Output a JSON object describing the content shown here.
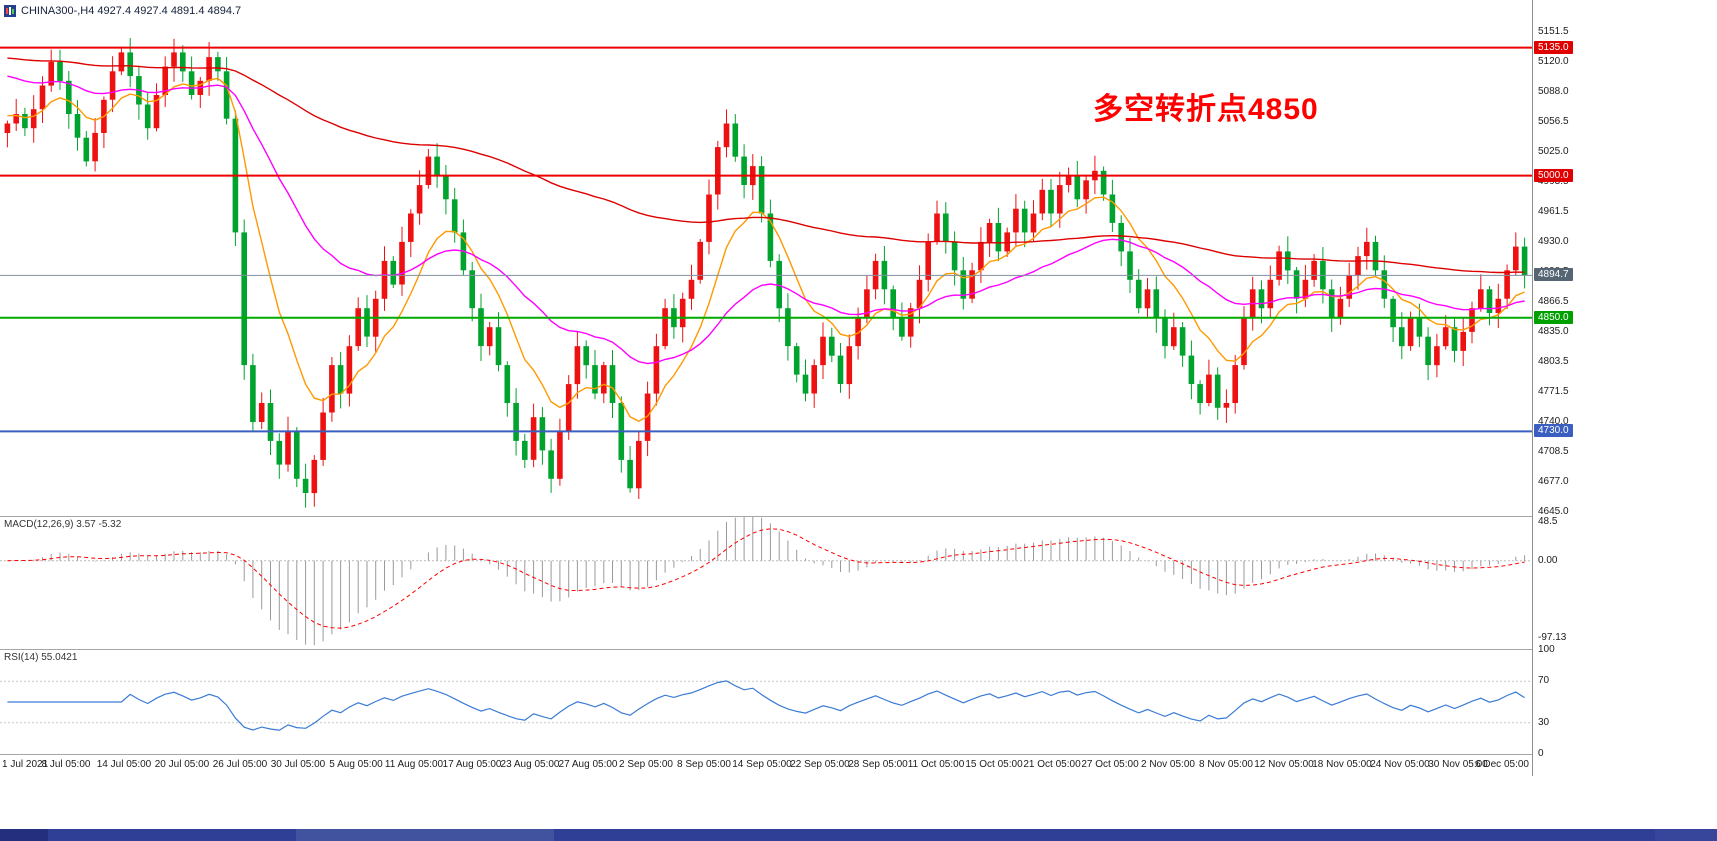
{
  "window": {
    "symbol_line": "CHINA300-,H4 4927.4 4927.4 4891.4 4894.7"
  },
  "annotation": {
    "text": "多空转折点4850",
    "color": "#ff0000"
  },
  "colors": {
    "bull": "#ee1111",
    "bear": "#00a32e",
    "ma_fast": "#ff9900",
    "ma_mid": "#ff00ff",
    "ma_slow": "#dd0000",
    "macd_hist": "#9a9a9a",
    "macd_signal": "#ff0000",
    "rsi_line": "#3a7bd5",
    "current_price_line": "#7f8fa0",
    "taskbar": "#2f3f96"
  },
  "main_axis": {
    "labels": [
      "5151.5",
      "5120.0",
      "5088.0",
      "5056.5",
      "5025.0",
      "4993.5",
      "4961.5",
      "4930.0",
      "4898.5",
      "4866.5",
      "4835.0",
      "4803.5",
      "4771.5",
      "4740.0",
      "4708.5",
      "4677.0",
      "4645.0"
    ],
    "badges": [
      {
        "label": "5135.0",
        "price": 5135.0,
        "bg": "#e00000"
      },
      {
        "label": "5000.0",
        "price": 5000.0,
        "bg": "#e00000"
      },
      {
        "label": "4894.7",
        "price": 4894.7,
        "bg": "#566573"
      },
      {
        "label": "4850.0",
        "price": 4850.0,
        "bg": "#00a000"
      },
      {
        "label": "4730.0",
        "price": 4730.0,
        "bg": "#3b5fc0"
      }
    ]
  },
  "macd": {
    "label": "MACD(12,26,9) 3.57 -5.32",
    "axis_labels": [
      {
        "text": "48.5",
        "value": 48.5
      },
      {
        "text": "0.00",
        "value": 0
      },
      {
        "text": "-97.13",
        "value": -97.13
      }
    ]
  },
  "rsi": {
    "label": "RSI(14) 55.0421",
    "levels": [
      70,
      30
    ],
    "axis_labels": [
      {
        "text": "100",
        "value": 100
      },
      {
        "text": "70",
        "value": 70
      },
      {
        "text": "30",
        "value": 30
      },
      {
        "text": "0",
        "value": 0
      }
    ]
  },
  "time_axis": [
    "1 Jul 2021",
    "8 Jul 05:00",
    "14 Jul 05:00",
    "20 Jul 05:00",
    "26 Jul 05:00",
    "30 Jul 05:00",
    "5 Aug 05:00",
    "11 Aug 05:00",
    "17 Aug 05:00",
    "23 Aug 05:00",
    "27 Aug 05:00",
    "2 Sep 05:00",
    "8 Sep 05:00",
    "14 Sep 05:00",
    "22 Sep 05:00",
    "28 Sep 05:00",
    "11 Oct 05:00",
    "15 Oct 05:00",
    "21 Oct 05:00",
    "27 Oct 05:00",
    "2 Nov 05:00",
    "8 Nov 05:00",
    "12 Nov 05:00",
    "18 Nov 05:00",
    "24 Nov 05:00",
    "30 Nov 05:00",
    "6 Dec 05:00"
  ],
  "chart_data": {
    "type": "candlestick",
    "symbol": "CHINA300-",
    "timeframe": "H4",
    "title": "CHINA300-,H4",
    "ylim": [
      4645.0,
      5151.5
    ],
    "last_ohlc": {
      "open": 4927.4,
      "high": 4927.4,
      "low": 4891.4,
      "close": 4894.7
    },
    "levels": [
      {
        "price": 5135.0,
        "color": "#ee0000",
        "type": "resistance-line"
      },
      {
        "price": 5000.0,
        "color": "#ee0000",
        "type": "resistance-line"
      },
      {
        "price": 4850.0,
        "color": "#00aa00",
        "type": "support-line"
      },
      {
        "price": 4730.0,
        "color": "#3b5fc0",
        "type": "support-line"
      },
      {
        "price": 4894.7,
        "color": "#7f8fa0",
        "type": "current-price-line"
      }
    ],
    "first_open": 5045,
    "closes": [
      5055,
      5065,
      5050,
      5070,
      5095,
      5120,
      5100,
      5065,
      5040,
      5015,
      5045,
      5080,
      5110,
      5130,
      5105,
      5075,
      5050,
      5085,
      5115,
      5130,
      5110,
      5085,
      5100,
      5125,
      5110,
      5060,
      4940,
      4800,
      4740,
      4760,
      4720,
      4695,
      4730,
      4680,
      4665,
      4700,
      4750,
      4800,
      4770,
      4820,
      4860,
      4830,
      4870,
      4910,
      4885,
      4930,
      4960,
      4990,
      5020,
      5000,
      4975,
      4940,
      4900,
      4860,
      4820,
      4840,
      4800,
      4760,
      4720,
      4700,
      4745,
      4710,
      4680,
      4730,
      4780,
      4820,
      4800,
      4770,
      4800,
      4760,
      4700,
      4670,
      4720,
      4770,
      4820,
      4860,
      4840,
      4870,
      4890,
      4930,
      4980,
      5030,
      5055,
      5020,
      4990,
      5010,
      4960,
      4910,
      4860,
      4820,
      4790,
      4770,
      4800,
      4830,
      4810,
      4780,
      4820,
      4850,
      4880,
      4910,
      4880,
      4850,
      4830,
      4860,
      4890,
      4930,
      4960,
      4930,
      4900,
      4870,
      4900,
      4930,
      4950,
      4920,
      4940,
      4965,
      4940,
      4960,
      4985,
      4960,
      4990,
      5000,
      4975,
      4995,
      5005,
      4980,
      4950,
      4920,
      4890,
      4860,
      4880,
      4850,
      4820,
      4840,
      4810,
      4780,
      4760,
      4790,
      4755,
      4760,
      4800,
      4850,
      4880,
      4860,
      4890,
      4920,
      4900,
      4870,
      4890,
      4910,
      4880,
      4850,
      4870,
      4895,
      4915,
      4930,
      4900,
      4870,
      4840,
      4820,
      4850,
      4830,
      4800,
      4820,
      4840,
      4815,
      4835,
      4860,
      4880,
      4855,
      4870,
      4900,
      4925,
      4894.7
    ],
    "overlays": [
      {
        "name": "ma-fast",
        "period": 10,
        "color": "#ff9900",
        "start": 5065
      },
      {
        "name": "ma-mid",
        "period": 34,
        "color": "#ff00ff",
        "start": 5108
      },
      {
        "name": "ma-slow",
        "period": 140,
        "color": "#dd0000",
        "start": 5125
      }
    ],
    "indicators": {
      "macd": {
        "fast": 12,
        "slow": 26,
        "signal": 9,
        "value": 3.57,
        "signal_value": -5.32,
        "ylim": [
          -110,
          55
        ]
      },
      "rsi": {
        "period": 14,
        "value": 55.0421,
        "ylim": [
          0,
          100
        ]
      }
    }
  }
}
